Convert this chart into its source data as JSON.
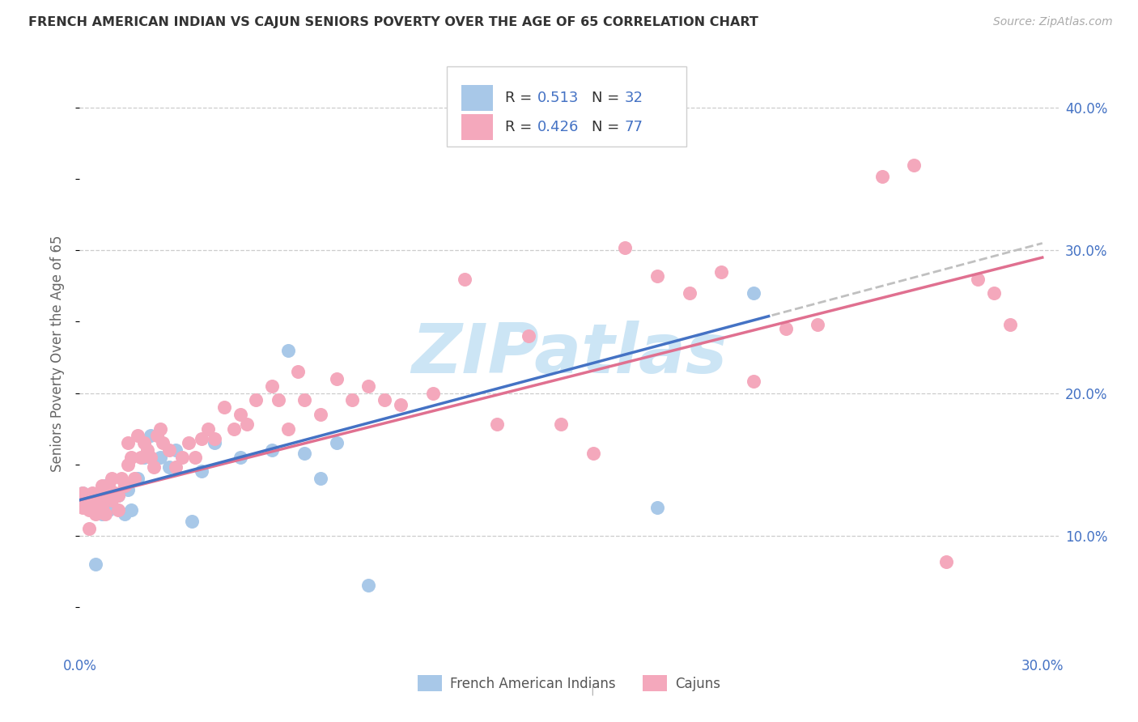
{
  "title": "FRENCH AMERICAN INDIAN VS CAJUN SENIORS POVERTY OVER THE AGE OF 65 CORRELATION CHART",
  "source": "Source: ZipAtlas.com",
  "ylabel": "Seniors Poverty Over the Age of 65",
  "xlim": [
    0.0,
    0.305
  ],
  "ylim": [
    0.02,
    0.435
  ],
  "blue_R": 0.513,
  "blue_N": 32,
  "pink_R": 0.426,
  "pink_N": 77,
  "blue_dot_color": "#a8c8e8",
  "pink_dot_color": "#f4a8bc",
  "blue_line_color": "#4472c4",
  "pink_line_color": "#e07090",
  "dash_line_color": "#c0c0c0",
  "label_blue": "French American Indians",
  "label_pink": "Cajuns",
  "r_label_color": "#4472c4",
  "n_label_color": "#4472c4",
  "legend_text_color": "#333333",
  "watermark_color": "#cce5f5",
  "grid_color": "#cccccc",
  "axis_label_color": "#4472c4",
  "ylabel_color": "#666666",
  "title_color": "#333333",
  "source_color": "#aaaaaa",
  "blue_x": [
    0.001,
    0.002,
    0.003,
    0.004,
    0.005,
    0.006,
    0.007,
    0.008,
    0.009,
    0.01,
    0.012,
    0.014,
    0.015,
    0.016,
    0.018,
    0.02,
    0.022,
    0.025,
    0.028,
    0.03,
    0.035,
    0.038,
    0.042,
    0.05,
    0.06,
    0.065,
    0.07,
    0.075,
    0.08,
    0.09,
    0.18,
    0.21
  ],
  "blue_y": [
    0.13,
    0.125,
    0.128,
    0.118,
    0.08,
    0.122,
    0.115,
    0.135,
    0.118,
    0.12,
    0.128,
    0.115,
    0.132,
    0.118,
    0.14,
    0.155,
    0.17,
    0.155,
    0.148,
    0.16,
    0.11,
    0.145,
    0.165,
    0.155,
    0.16,
    0.23,
    0.158,
    0.14,
    0.165,
    0.065,
    0.12,
    0.27
  ],
  "pink_x": [
    0.001,
    0.001,
    0.002,
    0.003,
    0.003,
    0.004,
    0.005,
    0.005,
    0.006,
    0.007,
    0.007,
    0.008,
    0.008,
    0.009,
    0.01,
    0.01,
    0.011,
    0.012,
    0.012,
    0.013,
    0.014,
    0.015,
    0.015,
    0.016,
    0.017,
    0.018,
    0.019,
    0.02,
    0.021,
    0.022,
    0.023,
    0.024,
    0.025,
    0.026,
    0.028,
    0.03,
    0.032,
    0.034,
    0.036,
    0.038,
    0.04,
    0.042,
    0.045,
    0.048,
    0.05,
    0.052,
    0.055,
    0.06,
    0.062,
    0.065,
    0.068,
    0.07,
    0.075,
    0.08,
    0.085,
    0.09,
    0.095,
    0.1,
    0.11,
    0.12,
    0.13,
    0.14,
    0.15,
    0.16,
    0.17,
    0.18,
    0.19,
    0.2,
    0.21,
    0.22,
    0.23,
    0.25,
    0.26,
    0.27,
    0.28,
    0.285,
    0.29
  ],
  "pink_y": [
    0.13,
    0.12,
    0.125,
    0.118,
    0.105,
    0.13,
    0.115,
    0.125,
    0.12,
    0.135,
    0.12,
    0.128,
    0.115,
    0.135,
    0.14,
    0.125,
    0.13,
    0.128,
    0.118,
    0.14,
    0.135,
    0.15,
    0.165,
    0.155,
    0.14,
    0.17,
    0.155,
    0.165,
    0.16,
    0.155,
    0.148,
    0.17,
    0.175,
    0.165,
    0.16,
    0.148,
    0.155,
    0.165,
    0.155,
    0.168,
    0.175,
    0.168,
    0.19,
    0.175,
    0.185,
    0.178,
    0.195,
    0.205,
    0.195,
    0.175,
    0.215,
    0.195,
    0.185,
    0.21,
    0.195,
    0.205,
    0.195,
    0.192,
    0.2,
    0.28,
    0.178,
    0.24,
    0.178,
    0.158,
    0.302,
    0.282,
    0.27,
    0.285,
    0.208,
    0.245,
    0.248,
    0.352,
    0.36,
    0.082,
    0.28,
    0.27,
    0.248
  ]
}
